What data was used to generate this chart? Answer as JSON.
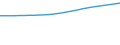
{
  "x": [
    1995,
    1996,
    1997,
    1998,
    1999,
    2000,
    2001,
    2002,
    2003,
    2004,
    2005,
    2006,
    2007,
    2008,
    2009,
    2010,
    2011,
    2012,
    2013,
    2014,
    2015,
    2016,
    2017,
    2018,
    2019,
    2020
  ],
  "y": [
    13.0,
    13.0,
    13.0,
    13.0,
    13.1,
    13.1,
    13.2,
    13.2,
    13.3,
    13.4,
    13.5,
    13.7,
    14.0,
    14.3,
    14.7,
    15.1,
    15.5,
    16.0,
    16.4,
    16.8,
    17.1,
    17.4,
    17.7,
    18.0,
    18.3,
    18.6
  ],
  "line_color": "#3a9fd4",
  "linewidth": 1.0,
  "background_color": "#ffffff",
  "ylim": [
    0,
    20
  ],
  "xlim": [
    1995,
    2020
  ]
}
